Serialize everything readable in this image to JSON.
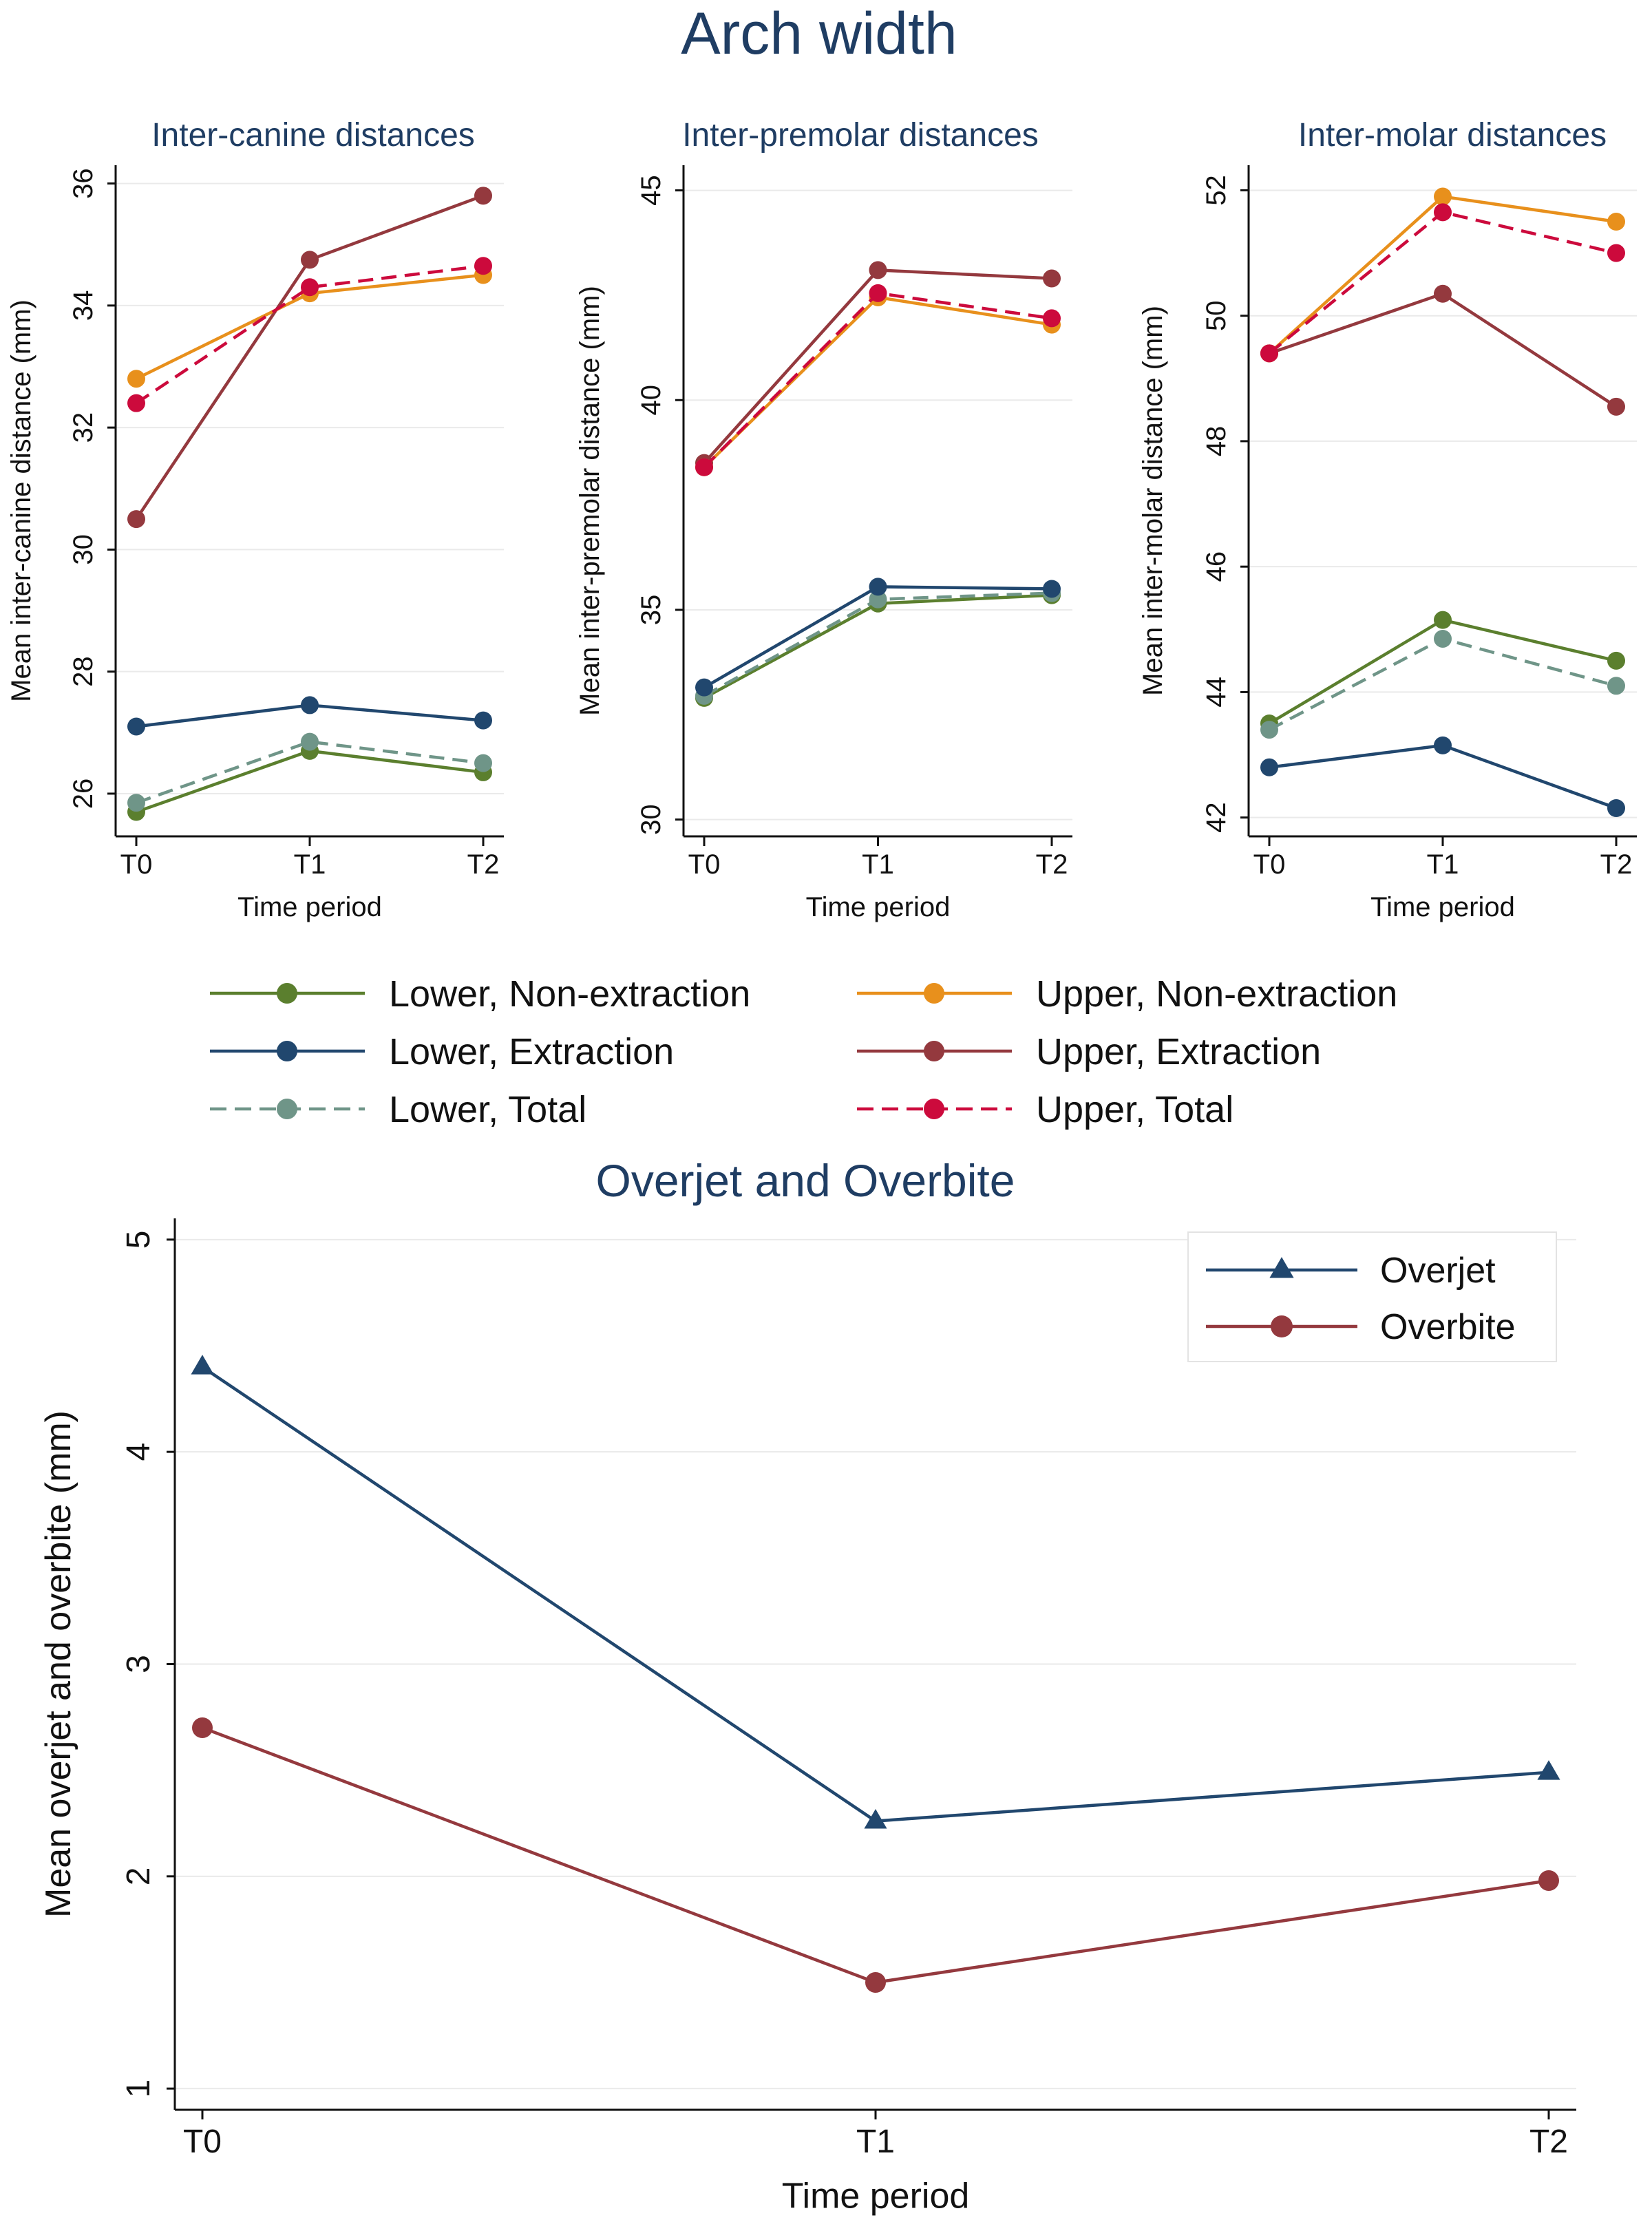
{
  "figure": {
    "arch_title": "Arch width",
    "legend": [
      {
        "key": "lower_nonext",
        "label": "Lower, Non-extraction"
      },
      {
        "key": "upper_nonext",
        "label": "Upper, Non-extraction"
      },
      {
        "key": "lower_ext",
        "label": "Lower, Extraction"
      },
      {
        "key": "upper_ext",
        "label": "Upper, Extraction"
      },
      {
        "key": "lower_total",
        "label": "Lower, Total"
      },
      {
        "key": "upper_total",
        "label": "Upper, Total"
      }
    ]
  },
  "series_styles": {
    "lower_nonext": {
      "color": "#5b7f2e",
      "dashed": false,
      "marker": "circle"
    },
    "lower_ext": {
      "color": "#21476e",
      "dashed": false,
      "marker": "circle"
    },
    "lower_total": {
      "color": "#6f9588",
      "dashed": true,
      "marker": "circle"
    },
    "upper_nonext": {
      "color": "#e8901c",
      "dashed": false,
      "marker": "circle"
    },
    "upper_ext": {
      "color": "#94393e",
      "dashed": false,
      "marker": "circle"
    },
    "upper_total": {
      "color": "#cc0a3c",
      "dashed": true,
      "marker": "circle"
    },
    "overjet": {
      "color": "#21476e",
      "dashed": false,
      "marker": "triangle"
    },
    "overbite": {
      "color": "#94393e",
      "dashed": false,
      "marker": "circle"
    }
  },
  "chart_data": [
    {
      "id": "canine",
      "type": "line",
      "title": "Inter-canine distances",
      "xlabel": "Time period",
      "ylabel": "Mean inter-canine distance (mm)",
      "categories": [
        "T0",
        "T1",
        "T2"
      ],
      "ylim": [
        25.3,
        36.3
      ],
      "yticks": [
        26,
        28,
        30,
        32,
        34,
        36
      ],
      "series": [
        {
          "key": "lower_nonext",
          "name": "Lower, Non-extraction",
          "values": [
            25.7,
            26.7,
            26.35
          ]
        },
        {
          "key": "lower_total",
          "name": "Lower, Total",
          "values": [
            25.85,
            26.85,
            26.5
          ]
        },
        {
          "key": "lower_ext",
          "name": "Lower, Extraction",
          "values": [
            27.1,
            27.45,
            27.2
          ]
        },
        {
          "key": "upper_ext",
          "name": "Upper, Extraction",
          "values": [
            30.5,
            34.75,
            35.8
          ]
        },
        {
          "key": "upper_nonext",
          "name": "Upper, Non-extraction",
          "values": [
            32.8,
            34.2,
            34.5
          ]
        },
        {
          "key": "upper_total",
          "name": "Upper, Total",
          "values": [
            32.4,
            34.3,
            34.65
          ]
        }
      ]
    },
    {
      "id": "premolar",
      "type": "line",
      "title": "Inter-premolar distances",
      "xlabel": "Time period",
      "ylabel": "Mean inter-premolar distance (mm)",
      "categories": [
        "T0",
        "T1",
        "T2"
      ],
      "ylim": [
        29.6,
        45.6
      ],
      "yticks": [
        30,
        35,
        40,
        45
      ],
      "series": [
        {
          "key": "lower_nonext",
          "name": "Lower, Non-extraction",
          "values": [
            32.9,
            35.15,
            35.35
          ]
        },
        {
          "key": "lower_total",
          "name": "Lower, Total",
          "values": [
            32.95,
            35.25,
            35.4
          ]
        },
        {
          "key": "lower_ext",
          "name": "Lower, Extraction",
          "values": [
            33.15,
            35.55,
            35.5
          ]
        },
        {
          "key": "upper_ext",
          "name": "Upper, Extraction",
          "values": [
            38.5,
            43.1,
            42.9
          ]
        },
        {
          "key": "upper_nonext",
          "name": "Upper, Non-extraction",
          "values": [
            38.4,
            42.45,
            41.8
          ]
        },
        {
          "key": "upper_total",
          "name": "Upper, Total",
          "values": [
            38.4,
            42.55,
            41.95
          ]
        }
      ]
    },
    {
      "id": "molar",
      "type": "line",
      "title": "Inter-molar distances",
      "xlabel": "Time period",
      "ylabel": "Mean inter-molar distance (mm)",
      "categories": [
        "T0",
        "T1",
        "T2"
      ],
      "ylim": [
        41.7,
        52.4
      ],
      "yticks": [
        42,
        44,
        46,
        48,
        50,
        52
      ],
      "series": [
        {
          "key": "lower_nonext",
          "name": "Lower, Non-extraction",
          "values": [
            43.5,
            45.15,
            44.5
          ]
        },
        {
          "key": "lower_total",
          "name": "Lower, Total",
          "values": [
            43.4,
            44.85,
            44.1
          ]
        },
        {
          "key": "lower_ext",
          "name": "Lower, Extraction",
          "values": [
            42.8,
            43.15,
            42.15
          ]
        },
        {
          "key": "upper_ext",
          "name": "Upper, Extraction",
          "values": [
            49.4,
            50.35,
            48.55
          ]
        },
        {
          "key": "upper_nonext",
          "name": "Upper, Non-extraction",
          "values": [
            49.4,
            51.9,
            51.5
          ]
        },
        {
          "key": "upper_total",
          "name": "Upper, Total",
          "values": [
            49.4,
            51.65,
            51.0
          ]
        }
      ]
    },
    {
      "id": "overjet",
      "type": "line",
      "title": "Overjet and Overbite",
      "xlabel": "Time period",
      "ylabel": "Mean overjet and overbite (mm)",
      "categories": [
        "T0",
        "T1",
        "T2"
      ],
      "ylim": [
        0.9,
        5.1
      ],
      "yticks": [
        1,
        2,
        3,
        4,
        5
      ],
      "legend_position": "top-right",
      "series": [
        {
          "key": "overjet",
          "name": "Overjet",
          "values": [
            4.4,
            2.26,
            2.49
          ]
        },
        {
          "key": "overbite",
          "name": "Overbite",
          "values": [
            2.7,
            1.5,
            1.98
          ]
        }
      ]
    }
  ]
}
